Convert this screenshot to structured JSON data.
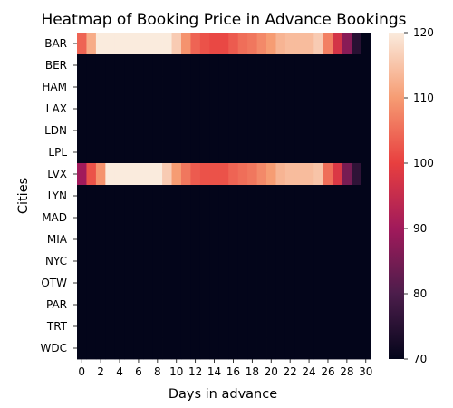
{
  "chart_data": {
    "type": "heatmap",
    "title": "Heatmap of Booking Price in Advance Bookings",
    "xlabel": "Days in advance",
    "ylabel": "Cities",
    "rows": [
      "BAR",
      "BER",
      "HAM",
      "LAX",
      "LDN",
      "LPL",
      "LVX",
      "LYN",
      "MAD",
      "MIA",
      "NYC",
      "OTW",
      "PAR",
      "TRT",
      "WDC"
    ],
    "columns": [
      0,
      1,
      2,
      3,
      4,
      5,
      6,
      7,
      8,
      9,
      10,
      11,
      12,
      13,
      14,
      15,
      16,
      17,
      18,
      19,
      20,
      21,
      22,
      23,
      24,
      25,
      26,
      27,
      28,
      29,
      30
    ],
    "x_tick_labels": [
      "0",
      "2",
      "4",
      "6",
      "8",
      "10",
      "12",
      "14",
      "16",
      "18",
      "20",
      "22",
      "24",
      "26",
      "28",
      "30"
    ],
    "values": [
      [
        104,
        112,
        120,
        120,
        120,
        120,
        120,
        120,
        120,
        120,
        116,
        109,
        104,
        102,
        101,
        101,
        103,
        105,
        106,
        108,
        110,
        113,
        114,
        114,
        114,
        116,
        107,
        97,
        87,
        75,
        70
      ],
      [
        70,
        70,
        70,
        70,
        70,
        70,
        70,
        70,
        70,
        70,
        70,
        70,
        70,
        70,
        70,
        70,
        70,
        70,
        70,
        70,
        70,
        70,
        70,
        70,
        70,
        70,
        70,
        70,
        70,
        70,
        70
      ],
      [
        70,
        70,
        70,
        70,
        70,
        70,
        70,
        70,
        70,
        70,
        70,
        70,
        70,
        70,
        70,
        70,
        70,
        70,
        70,
        70,
        70,
        70,
        70,
        70,
        70,
        70,
        70,
        70,
        70,
        70,
        70
      ],
      [
        70,
        70,
        70,
        70,
        70,
        70,
        70,
        70,
        70,
        70,
        70,
        70,
        70,
        70,
        70,
        70,
        70,
        70,
        70,
        70,
        70,
        70,
        70,
        70,
        70,
        70,
        70,
        70,
        70,
        70,
        70
      ],
      [
        70,
        70,
        70,
        70,
        70,
        70,
        70,
        70,
        70,
        70,
        70,
        70,
        70,
        70,
        70,
        70,
        70,
        70,
        70,
        70,
        70,
        70,
        70,
        70,
        70,
        70,
        70,
        70,
        70,
        70,
        70
      ],
      [
        70,
        70,
        70,
        70,
        70,
        70,
        70,
        70,
        70,
        70,
        70,
        70,
        70,
        70,
        70,
        70,
        70,
        70,
        70,
        70,
        70,
        70,
        70,
        70,
        70,
        70,
        70,
        70,
        70,
        70,
        70
      ],
      [
        90,
        102,
        109,
        120,
        120,
        120,
        120,
        120,
        120,
        116,
        110,
        106,
        103,
        102,
        102,
        102,
        104,
        105,
        106,
        108,
        110,
        113,
        114,
        114,
        114,
        115,
        105,
        98,
        85,
        76,
        70
      ],
      [
        70,
        70,
        70,
        70,
        70,
        70,
        70,
        70,
        70,
        70,
        70,
        70,
        70,
        70,
        70,
        70,
        70,
        70,
        70,
        70,
        70,
        70,
        70,
        70,
        70,
        70,
        70,
        70,
        70,
        70,
        70
      ],
      [
        70,
        70,
        70,
        70,
        70,
        70,
        70,
        70,
        70,
        70,
        70,
        70,
        70,
        70,
        70,
        70,
        70,
        70,
        70,
        70,
        70,
        70,
        70,
        70,
        70,
        70,
        70,
        70,
        70,
        70,
        70
      ],
      [
        70,
        70,
        70,
        70,
        70,
        70,
        70,
        70,
        70,
        70,
        70,
        70,
        70,
        70,
        70,
        70,
        70,
        70,
        70,
        70,
        70,
        70,
        70,
        70,
        70,
        70,
        70,
        70,
        70,
        70,
        70
      ],
      [
        70,
        70,
        70,
        70,
        70,
        70,
        70,
        70,
        70,
        70,
        70,
        70,
        70,
        70,
        70,
        70,
        70,
        70,
        70,
        70,
        70,
        70,
        70,
        70,
        70,
        70,
        70,
        70,
        70,
        70,
        70
      ],
      [
        70,
        70,
        70,
        70,
        70,
        70,
        70,
        70,
        70,
        70,
        70,
        70,
        70,
        70,
        70,
        70,
        70,
        70,
        70,
        70,
        70,
        70,
        70,
        70,
        70,
        70,
        70,
        70,
        70,
        70,
        70
      ],
      [
        70,
        70,
        70,
        70,
        70,
        70,
        70,
        70,
        70,
        70,
        70,
        70,
        70,
        70,
        70,
        70,
        70,
        70,
        70,
        70,
        70,
        70,
        70,
        70,
        70,
        70,
        70,
        70,
        70,
        70,
        70
      ],
      [
        70,
        70,
        70,
        70,
        70,
        70,
        70,
        70,
        70,
        70,
        70,
        70,
        70,
        70,
        70,
        70,
        70,
        70,
        70,
        70,
        70,
        70,
        70,
        70,
        70,
        70,
        70,
        70,
        70,
        70,
        70
      ],
      [
        70,
        70,
        70,
        70,
        70,
        70,
        70,
        70,
        70,
        70,
        70,
        70,
        70,
        70,
        70,
        70,
        70,
        70,
        70,
        70,
        70,
        70,
        70,
        70,
        70,
        70,
        70,
        70,
        70,
        70,
        70
      ]
    ],
    "colorbar": {
      "min": 70,
      "max": 120,
      "ticks": [
        70,
        80,
        90,
        100,
        110,
        120
      ],
      "colormap": [
        "#03051a",
        "#4c1d4b",
        "#a11a5b",
        "#e83f3f",
        "#f69c73",
        "#faebdd"
      ]
    },
    "legend": "colorbar at right",
    "grid": false
  }
}
